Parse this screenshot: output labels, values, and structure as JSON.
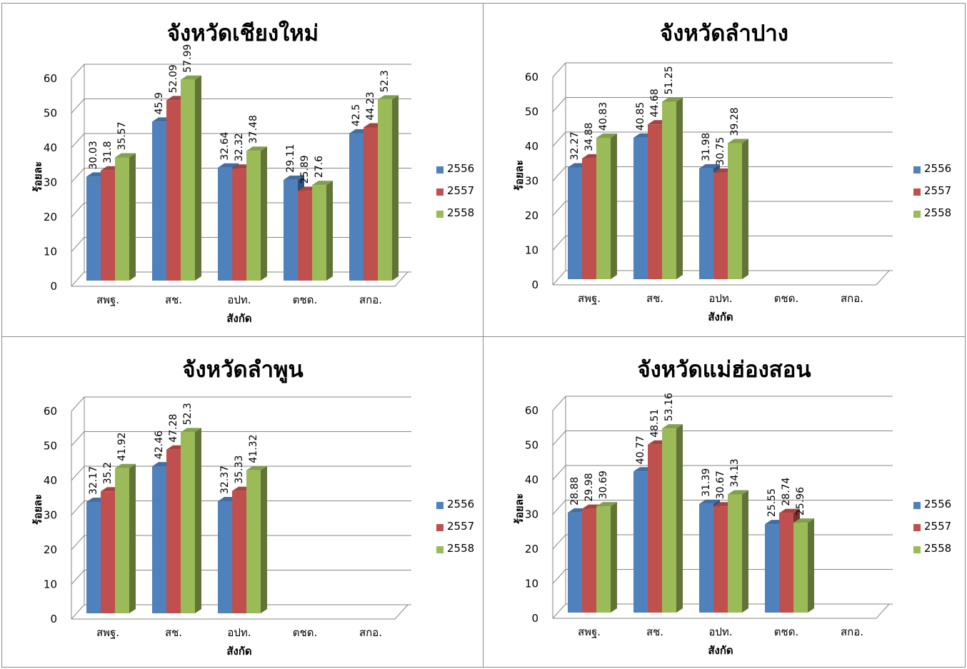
{
  "colors": {
    "2556": "#4f81bd",
    "2557": "#c0504d",
    "2558": "#9bbb59"
  },
  "chart_data": [
    {
      "type": "bar",
      "title": "จังหวัดเชียงใหม่",
      "xlabel": "สังกัด",
      "ylabel": "ร้อยละ",
      "ylim": [
        0,
        60
      ],
      "yticks": [
        0,
        10,
        20,
        30,
        40,
        50,
        60
      ],
      "grid": true,
      "legend_position": "right",
      "categories": [
        "สพฐ.",
        "สช.",
        "อปท.",
        "ตชด.",
        "สกอ."
      ],
      "series": [
        {
          "name": "2556",
          "values": [
            30.03,
            45.9,
            32.64,
            29.11,
            42.5
          ],
          "labels": [
            "30.03",
            "45.9",
            "32.64",
            "29.11",
            "42.5"
          ]
        },
        {
          "name": "2557",
          "values": [
            31.8,
            52.09,
            32.32,
            25.89,
            44.23
          ],
          "labels": [
            "31.8",
            "52.09",
            "32.32",
            "25.89",
            "44.23"
          ]
        },
        {
          "name": "2558",
          "values": [
            35.57,
            57.99,
            37.48,
            27.6,
            52.3
          ],
          "labels": [
            "35.57",
            "57.99",
            "37.48",
            "27.6",
            "52.3"
          ]
        }
      ]
    },
    {
      "type": "bar",
      "title": "จังหวัดลำปาง",
      "xlabel": "สังกัด",
      "ylabel": "ร้อยละ",
      "ylim": [
        0,
        60
      ],
      "yticks": [
        0,
        10,
        20,
        30,
        40,
        50,
        60
      ],
      "grid": true,
      "legend_position": "right",
      "categories": [
        "สพฐ.",
        "สช.",
        "อปท.",
        "ตชด.",
        "สกอ."
      ],
      "series": [
        {
          "name": "2556",
          "values": [
            32.27,
            40.85,
            31.98,
            null,
            null
          ],
          "labels": [
            "32.27",
            "40.85",
            "31.98",
            null,
            null
          ]
        },
        {
          "name": "2557",
          "values": [
            34.88,
            44.68,
            30.75,
            null,
            null
          ],
          "labels": [
            "34.88",
            "44.68",
            "30.75",
            null,
            null
          ]
        },
        {
          "name": "2558",
          "values": [
            40.83,
            51.25,
            39.28,
            null,
            null
          ],
          "labels": [
            "40.83",
            "51.25",
            "39.28",
            null,
            null
          ]
        }
      ]
    },
    {
      "type": "bar",
      "title": "จังหวัดลำพูน",
      "xlabel": "สังกัด",
      "ylabel": "ร้อยละ",
      "ylim": [
        0,
        60
      ],
      "yticks": [
        0,
        10,
        20,
        30,
        40,
        50,
        60
      ],
      "grid": true,
      "legend_position": "right",
      "categories": [
        "สพฐ.",
        "สช.",
        "อปท.",
        "ตชด.",
        "สกอ."
      ],
      "series": [
        {
          "name": "2556",
          "values": [
            32.17,
            42.46,
            32.37,
            null,
            null
          ],
          "labels": [
            "32.17",
            "42.46",
            "32.37",
            null,
            null
          ]
        },
        {
          "name": "2557",
          "values": [
            35.2,
            47.28,
            35.33,
            null,
            null
          ],
          "labels": [
            "35.2",
            "47.28",
            "35.33",
            null,
            null
          ]
        },
        {
          "name": "2558",
          "values": [
            41.92,
            52.3,
            41.32,
            null,
            null
          ],
          "labels": [
            "41.92",
            "52.3",
            "41.32",
            null,
            null
          ]
        }
      ]
    },
    {
      "type": "bar",
      "title": "จังหวัดแม่ฮ่องสอน",
      "xlabel": "สังกัด",
      "ylabel": "ร้อยละ",
      "ylim": [
        0,
        60
      ],
      "yticks": [
        0,
        10,
        20,
        30,
        40,
        50,
        60
      ],
      "grid": true,
      "legend_position": "right",
      "categories": [
        "สพฐ.",
        "สช.",
        "อปท.",
        "ตชด.",
        "สกอ."
      ],
      "series": [
        {
          "name": "2556",
          "values": [
            28.88,
            40.77,
            31.39,
            25.55,
            null
          ],
          "labels": [
            "28.88",
            "40.77",
            "31.39",
            "25.55",
            null
          ]
        },
        {
          "name": "2557",
          "values": [
            29.98,
            48.51,
            30.67,
            28.74,
            null
          ],
          "labels": [
            "29.98",
            "48.51",
            "30.67",
            "28.74",
            null
          ]
        },
        {
          "name": "2558",
          "values": [
            30.69,
            53.16,
            34.13,
            25.96,
            null
          ],
          "labels": [
            "30.69",
            "53.16",
            "34.13",
            "25.96",
            null
          ]
        }
      ]
    }
  ]
}
